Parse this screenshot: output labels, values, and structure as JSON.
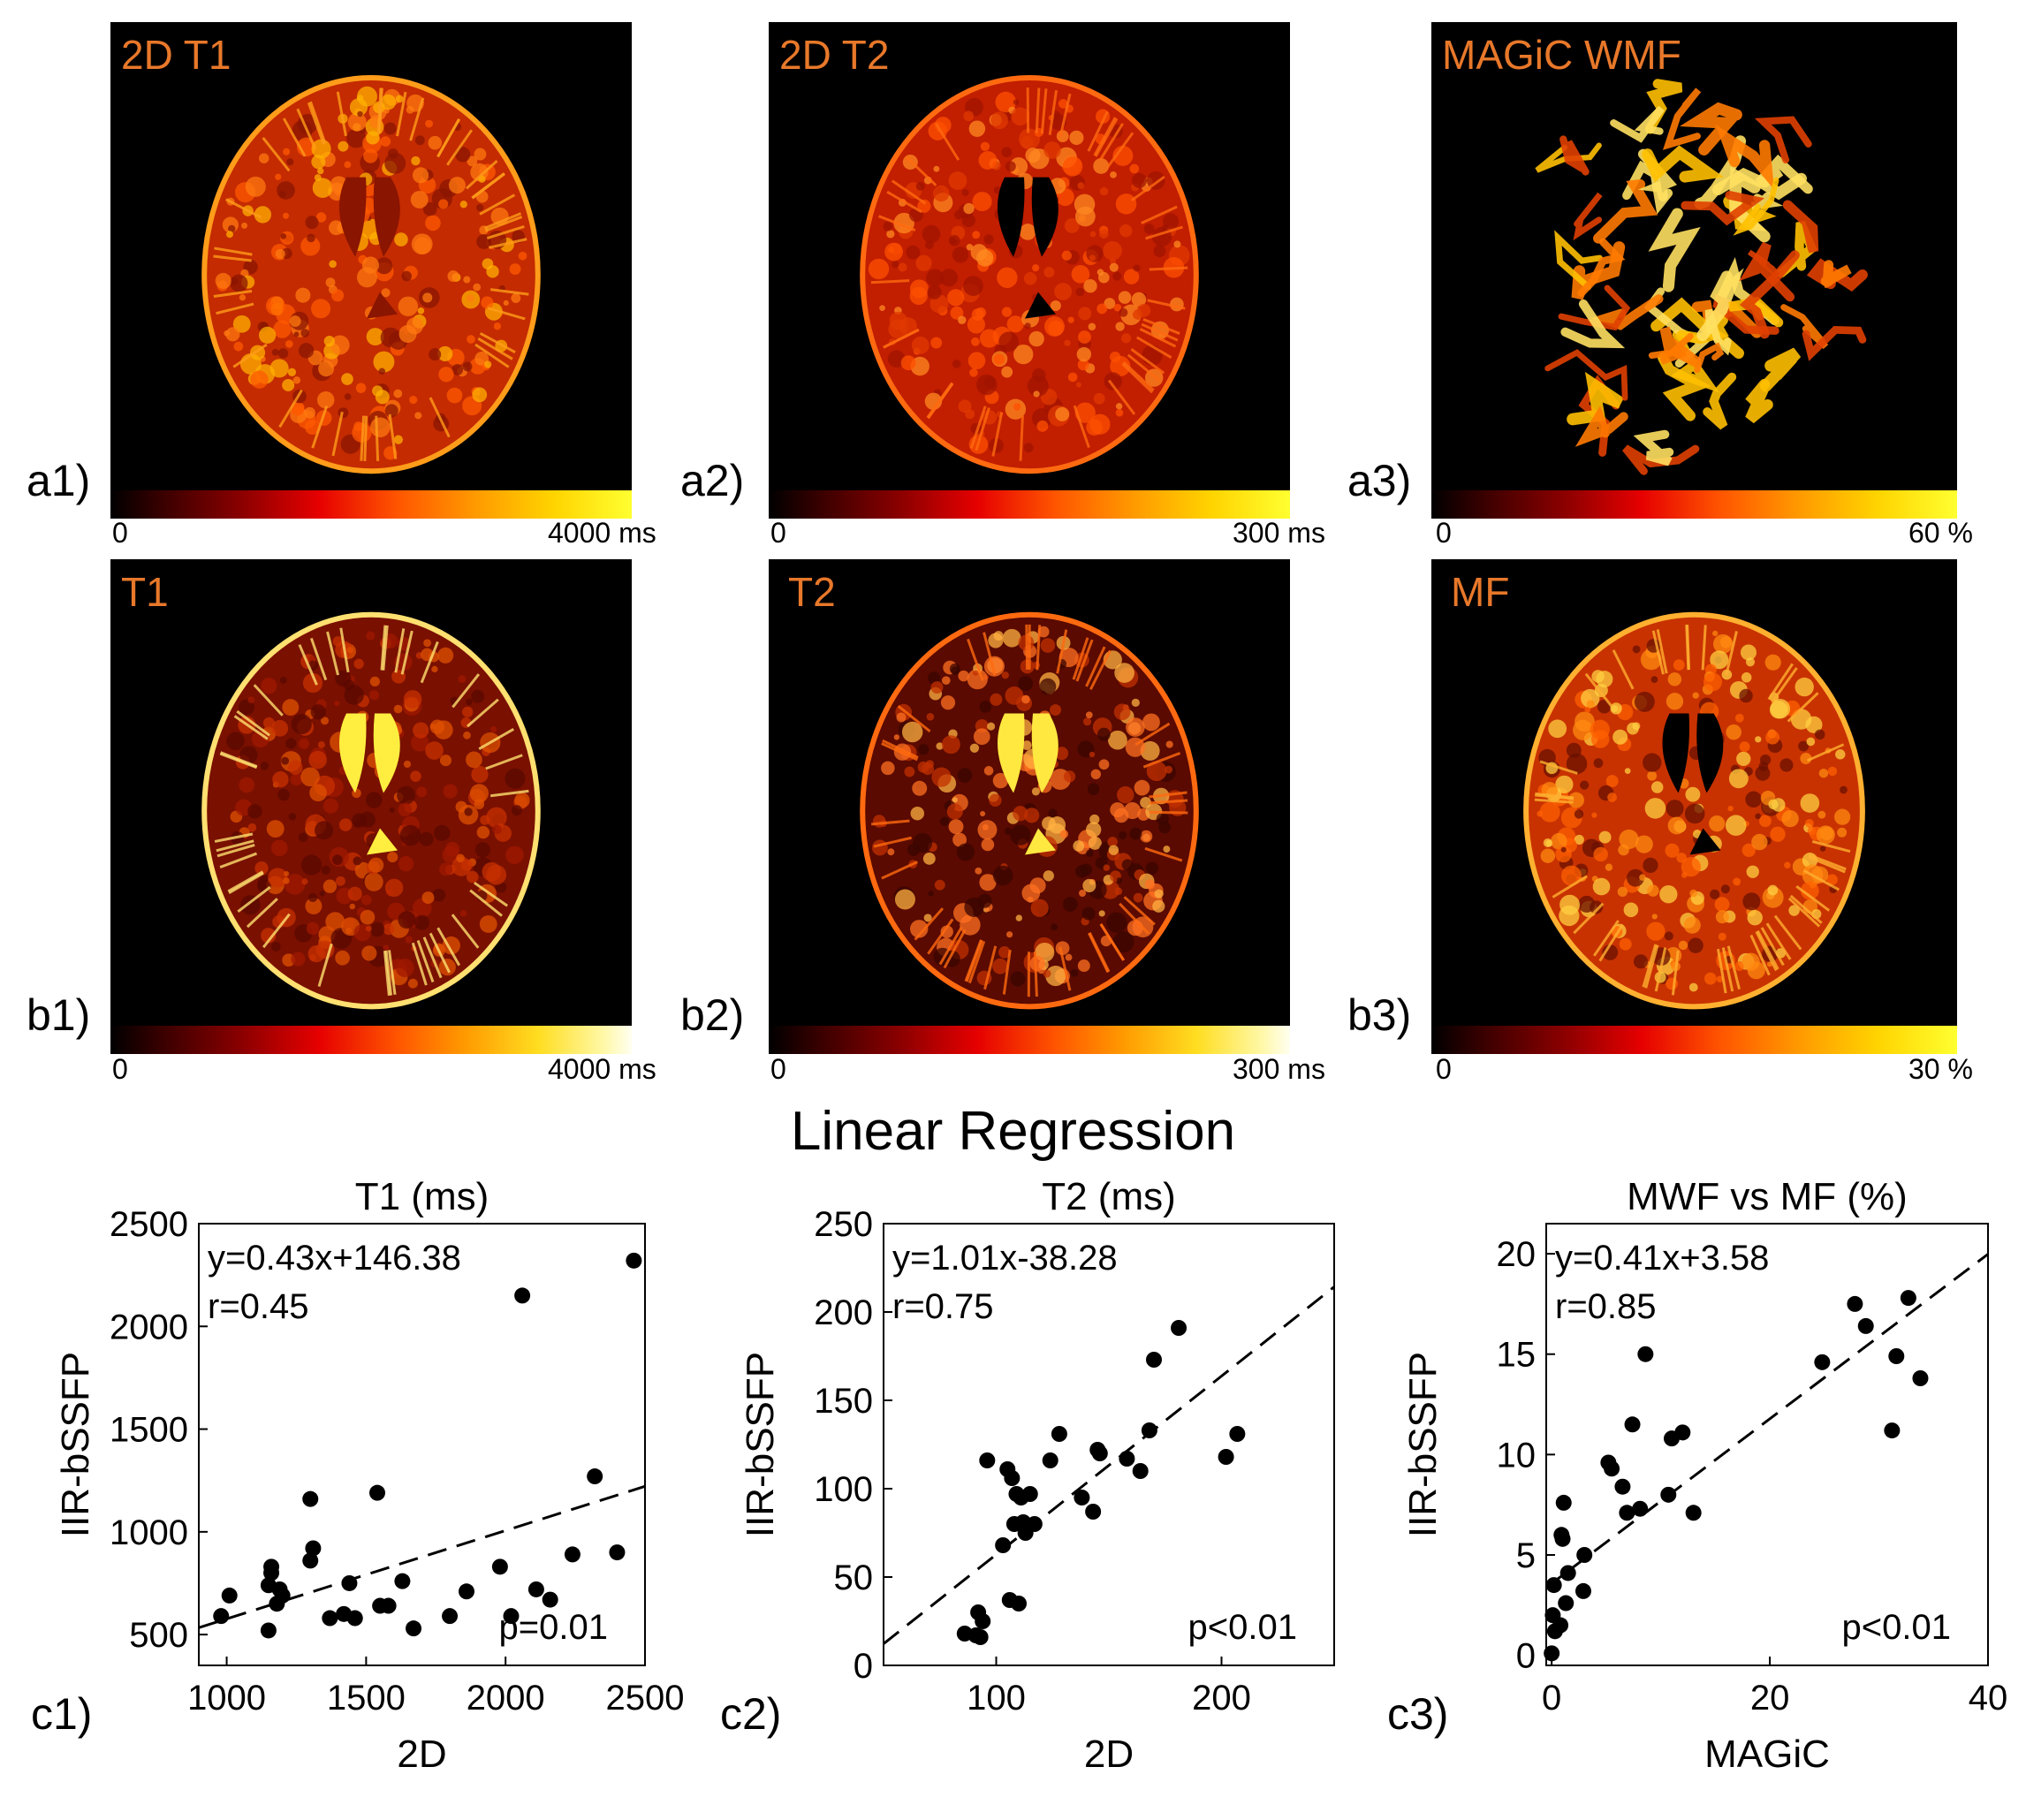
{
  "main_title": "Linear Regression",
  "maps": [
    {
      "id": "a1",
      "label": "a1)",
      "title": "2D T1",
      "cb_min": "0",
      "cb_max": "4000 ms",
      "style": "t1"
    },
    {
      "id": "a2",
      "label": "a2)",
      "title": "2D T2",
      "cb_min": "0",
      "cb_max": "300 ms",
      "style": "t2"
    },
    {
      "id": "a3",
      "label": "a3)",
      "title": "MAGiC WMF",
      "cb_min": "0",
      "cb_max": "60 %",
      "style": "wmf"
    },
    {
      "id": "b1",
      "label": "b1)",
      "title": "T1",
      "cb_min": "0",
      "cb_max": "4000 ms",
      "style": "t1b"
    },
    {
      "id": "b2",
      "label": "b2)",
      "title": "T2",
      "cb_min": "0",
      "cb_max": "300 ms",
      "style": "t2b"
    },
    {
      "id": "b3",
      "label": "b3)",
      "title": "MF",
      "cb_min": "0",
      "cb_max": "30 %",
      "style": "mf"
    }
  ],
  "chart_data": [
    {
      "type": "scatter",
      "panel_label": "c1)",
      "title": "T1 (ms)",
      "xlabel": "2D",
      "ylabel": "IIR-bSSFP",
      "xlim": [
        900,
        2500
      ],
      "ylim": [
        350,
        2500
      ],
      "xticks": [
        1000,
        1500,
        2000,
        2500
      ],
      "yticks": [
        500,
        1000,
        1500,
        2000,
        2500
      ],
      "equation": "y=0.43x+146.38",
      "r_text": "r=0.45",
      "p_text": "p=0.01",
      "fit": {
        "slope": 0.43,
        "intercept": 146.38
      },
      "points": [
        [
          980,
          590
        ],
        [
          1010,
          690
        ],
        [
          1150,
          520
        ],
        [
          1150,
          740
        ],
        [
          1160,
          800
        ],
        [
          1160,
          830
        ],
        [
          1180,
          650
        ],
        [
          1190,
          720
        ],
        [
          1200,
          690
        ],
        [
          1300,
          1160
        ],
        [
          1300,
          860
        ],
        [
          1310,
          920
        ],
        [
          1370,
          580
        ],
        [
          1420,
          600
        ],
        [
          1440,
          750
        ],
        [
          1460,
          580
        ],
        [
          1540,
          1190
        ],
        [
          1550,
          640
        ],
        [
          1580,
          640
        ],
        [
          1630,
          760
        ],
        [
          1670,
          530
        ],
        [
          1800,
          590
        ],
        [
          1860,
          710
        ],
        [
          1980,
          830
        ],
        [
          2020,
          590
        ],
        [
          2060,
          2150
        ],
        [
          2110,
          720
        ],
        [
          2160,
          670
        ],
        [
          2240,
          890
        ],
        [
          2320,
          1270
        ],
        [
          2400,
          900
        ],
        [
          2460,
          2320
        ]
      ]
    },
    {
      "type": "scatter",
      "panel_label": "c2)",
      "title": "T2 (ms)",
      "xlabel": "2D",
      "ylabel": "IIR-bSSFP",
      "xlim": [
        50,
        250
      ],
      "ylim": [
        0,
        250
      ],
      "xticks": [
        100,
        200
      ],
      "yticks": [
        0,
        50,
        100,
        150,
        200,
        250
      ],
      "equation": "y=1.01x-38.28",
      "r_text": "r=0.75",
      "p_text": "p<0.01",
      "fit": {
        "slope": 1.01,
        "intercept": -38.28
      },
      "points": [
        [
          86,
          18
        ],
        [
          91,
          17
        ],
        [
          92,
          30
        ],
        [
          93,
          16
        ],
        [
          94,
          25
        ],
        [
          96,
          116
        ],
        [
          103,
          68
        ],
        [
          105,
          111
        ],
        [
          106,
          37
        ],
        [
          107,
          106
        ],
        [
          108,
          80
        ],
        [
          109,
          97
        ],
        [
          110,
          35
        ],
        [
          111,
          95
        ],
        [
          112,
          81
        ],
        [
          113,
          75
        ],
        [
          115,
          97
        ],
        [
          117,
          80
        ],
        [
          124,
          116
        ],
        [
          128,
          131
        ],
        [
          138,
          95
        ],
        [
          143,
          87
        ],
        [
          145,
          122
        ],
        [
          146,
          120
        ],
        [
          158,
          117
        ],
        [
          164,
          110
        ],
        [
          168,
          133
        ],
        [
          170,
          173
        ],
        [
          181,
          191
        ],
        [
          202,
          118
        ],
        [
          207,
          131
        ]
      ]
    },
    {
      "type": "scatter",
      "panel_label": "c3)",
      "title": "MWF vs MF (%)",
      "xlabel": "MAGiC",
      "ylabel": "IIR-bSSFP",
      "xlim": [
        -0.5,
        40
      ],
      "ylim": [
        -0.5,
        21.5
      ],
      "xticks": [
        0,
        20,
        40
      ],
      "yticks": [
        0,
        5,
        10,
        15,
        20
      ],
      "equation": "y=0.41x+3.58",
      "r_text": "r=0.85",
      "p_text": "p<0.01",
      "fit": {
        "slope": 0.41,
        "intercept": 3.58
      },
      "points": [
        [
          0,
          0.1
        ],
        [
          0.1,
          2
        ],
        [
          0.2,
          3.5
        ],
        [
          0.3,
          1.2
        ],
        [
          0.8,
          1.5
        ],
        [
          0.9,
          6
        ],
        [
          1,
          5.8
        ],
        [
          1.1,
          7.6
        ],
        [
          1.3,
          2.6
        ],
        [
          1.5,
          4.1
        ],
        [
          2.9,
          3.2
        ],
        [
          3,
          5
        ],
        [
          5.2,
          9.6
        ],
        [
          5.5,
          9.3
        ],
        [
          6.5,
          8.4
        ],
        [
          6.9,
          7.1
        ],
        [
          7.4,
          11.5
        ],
        [
          8.1,
          7.3
        ],
        [
          8.6,
          15
        ],
        [
          10.7,
          8
        ],
        [
          11,
          10.8
        ],
        [
          12,
          11.1
        ],
        [
          13,
          7.1
        ],
        [
          24.8,
          14.6
        ],
        [
          27.8,
          17.5
        ],
        [
          28.8,
          16.4
        ],
        [
          31.2,
          11.2
        ],
        [
          31.6,
          14.9
        ],
        [
          32.7,
          17.8
        ],
        [
          33.8,
          13.8
        ]
      ]
    }
  ]
}
